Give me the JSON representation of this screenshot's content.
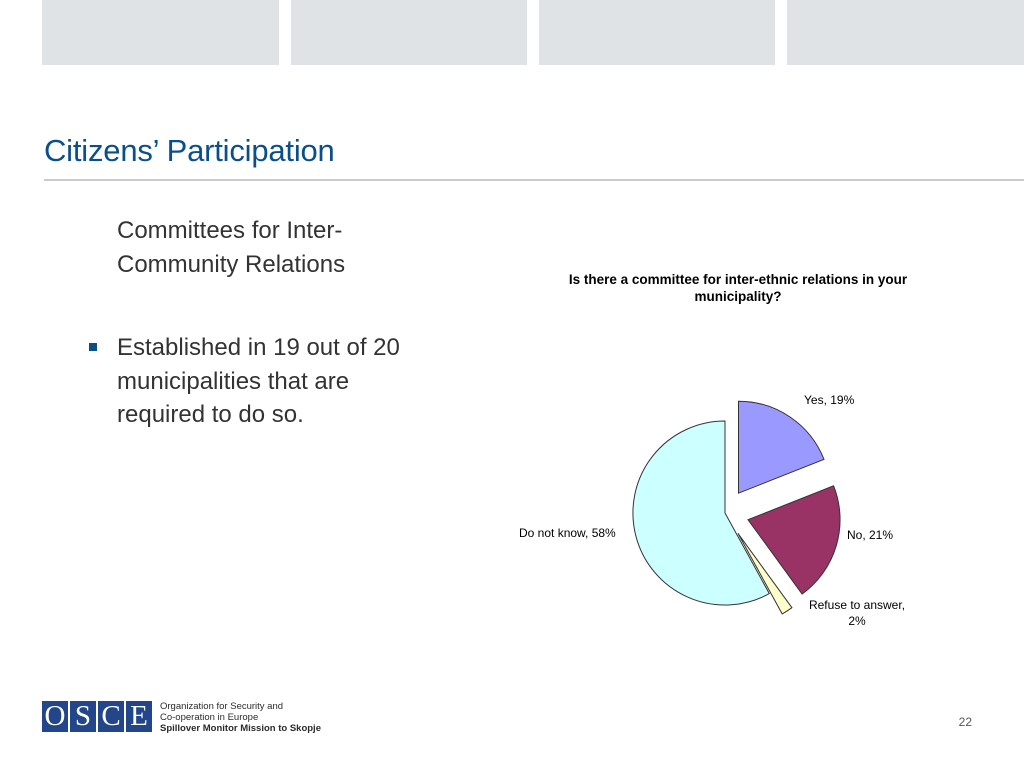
{
  "slide": {
    "title": "Citizens’ Participation",
    "sub_heading": "Committees for Inter-Community Relations",
    "bullet": "Established in 19 out of 20 municipalities that are required to do so.",
    "page_number": "22"
  },
  "footer": {
    "logo_letters": [
      "O",
      "S",
      "C",
      "E"
    ],
    "org_line1": "Organization for Security and",
    "org_line2": "Co-operation in Europe",
    "mission": "Spillover Monitor Mission to Skopje"
  },
  "chart_data": {
    "type": "pie",
    "title_line1": "Is there a committee for inter-ethnic relations in your",
    "title_line2": "municipality?",
    "slices": [
      {
        "label": "Yes, 19%",
        "value": 19,
        "color": "#9999ff",
        "exploded": true
      },
      {
        "label": "No, 21%",
        "value": 21,
        "color": "#993366",
        "exploded": true
      },
      {
        "label_line1": "Refuse to answer,",
        "label_line2": "2%",
        "value": 2,
        "color": "#ffffcc",
        "exploded": true
      },
      {
        "label": "Do not know, 58%",
        "value": 58,
        "color": "#ccffff",
        "exploded": false
      }
    ],
    "start_angle_deg": 0,
    "direction": "clockwise",
    "legend": "none"
  }
}
